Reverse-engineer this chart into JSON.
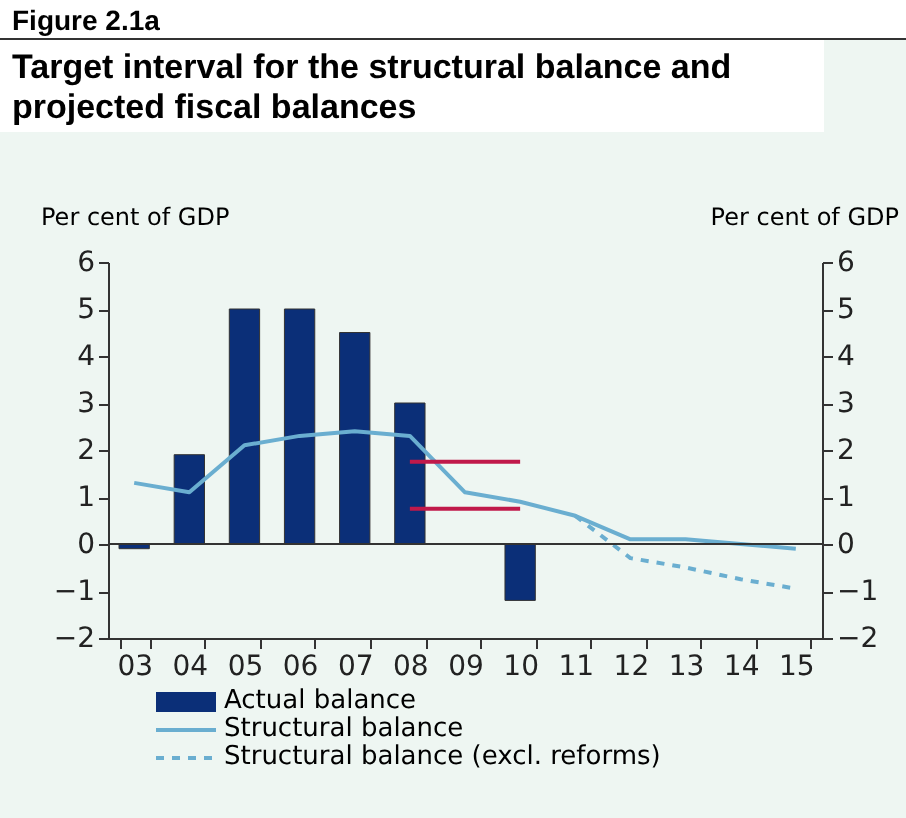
{
  "chart_data": {
    "type": "bar",
    "subtitle": "Figure 2.1a",
    "title": "Target interval for the structural balance and projected fiscal balances",
    "ylabel": "Per cent of GDP",
    "y2label": "Per cent of GDP",
    "categories": [
      "03",
      "04",
      "05",
      "06",
      "07",
      "08",
      "09",
      "10",
      "11",
      "12",
      "13",
      "14",
      "15"
    ],
    "series": [
      {
        "name": "Actual balance",
        "color": "#0b2f78",
        "values": [
          -0.1,
          1.9,
          5,
          5,
          4.5,
          3,
          null,
          -1.2,
          null,
          null,
          null,
          null,
          null
        ]
      },
      {
        "name": "Structural balance",
        "type": "line",
        "color": "#6aaed0",
        "line_style": "solid",
        "values": [
          1.3,
          1.1,
          2.1,
          2.3,
          2.4,
          2.3,
          1.1,
          0.9,
          0.6,
          0.1,
          0.1,
          0,
          -0.1
        ]
      },
      {
        "name": "Structural balance (excl. reforms)",
        "type": "line",
        "color": "#6aaed0",
        "line_style": "dashed",
        "values": [
          null,
          null,
          null,
          null,
          null,
          null,
          null,
          null,
          0.6,
          -0.3,
          -0.5,
          -0.75,
          -0.95
        ]
      },
      {
        "type": "line",
        "color": "#c0194a",
        "line_style": "solid",
        "values": [
          null,
          null,
          null,
          null,
          null,
          1.75,
          1.75,
          1.75,
          null,
          null,
          null,
          null,
          null
        ]
      },
      {
        "type": "line",
        "color": "#c0194a",
        "line_style": "solid",
        "values": [
          null,
          null,
          null,
          null,
          null,
          0.75,
          0.75,
          0.75,
          null,
          null,
          null,
          null,
          null
        ]
      }
    ],
    "ylim": [
      -2,
      6
    ],
    "yticks": [
      -2,
      -1,
      0,
      1,
      2,
      3,
      4,
      5,
      6
    ],
    "y2lim": [
      -2,
      6
    ],
    "y2ticks": [
      -2,
      -1,
      0,
      1,
      2,
      3,
      4,
      5,
      6
    ],
    "ref_lines": [
      {
        "axis": "y",
        "value": 0,
        "color": "#333333"
      }
    ],
    "legend": "bottom",
    "grid": false,
    "marker": "none"
  }
}
